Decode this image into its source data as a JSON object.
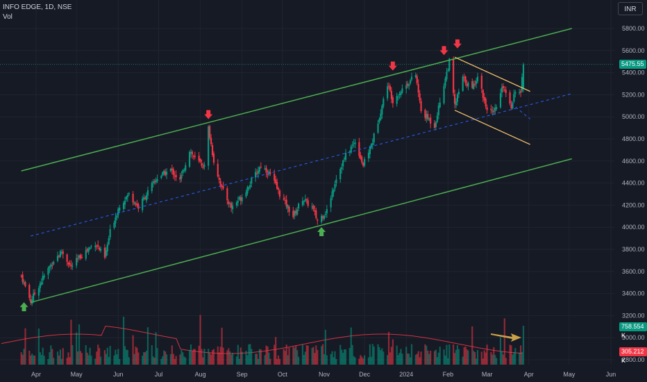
{
  "header": {
    "symbol": "INFO EDGE, 1D, NSE",
    "vol_label": "Vol"
  },
  "currency_button": "INR",
  "price_tag": {
    "value": "5475.55",
    "color": "#089981"
  },
  "vol_tags": [
    {
      "value": "758.554 K",
      "color": "#089981"
    },
    {
      "value": "305.212 K",
      "color": "#f23645"
    }
  ],
  "colors": {
    "up": "#089981",
    "down": "#f23645",
    "channel": "#4caf50",
    "wedge": "#f7c56b",
    "midline": "#2962ff",
    "volume_ma": "#f23645",
    "annotation_arrow": "#c9a14a"
  },
  "chart_data": {
    "type": "candlestick",
    "title": "INFO EDGE, 1D, NSE",
    "x_ticks": [
      "Apr",
      "May",
      "Jun",
      "Jul",
      "Aug",
      "Sep",
      "Oct",
      "Nov",
      "Dec",
      "2024",
      "Feb",
      "Mar",
      "Apr",
      "May",
      "Jun"
    ],
    "y_ticks": [
      5800,
      5600,
      5400,
      5200,
      5000,
      4800,
      4600,
      4400,
      4200,
      4000,
      3800,
      3600,
      3400,
      3200,
      3000,
      2800
    ],
    "ylim": [
      2720,
      5950
    ],
    "last_price": 5475.55,
    "close_path": [
      [
        "2023-03-21",
        3560
      ],
      [
        "2023-03-28",
        3330
      ],
      [
        "2023-04-06",
        3540
      ],
      [
        "2023-04-14",
        3700
      ],
      [
        "2023-04-20",
        3780
      ],
      [
        "2023-04-27",
        3640
      ],
      [
        "2023-05-05",
        3750
      ],
      [
        "2023-05-15",
        3860
      ],
      [
        "2023-05-22",
        3720
      ],
      [
        "2023-05-26",
        3960
      ],
      [
        "2023-06-02",
        4200
      ],
      [
        "2023-06-09",
        4300
      ],
      [
        "2023-06-16",
        4180
      ],
      [
        "2023-06-23",
        4320
      ],
      [
        "2023-06-30",
        4450
      ],
      [
        "2023-07-10",
        4520
      ],
      [
        "2023-07-17",
        4420
      ],
      [
        "2023-07-24",
        4700
      ],
      [
        "2023-07-28",
        4620
      ],
      [
        "2023-08-04",
        4550
      ],
      [
        "2023-08-07",
        4900
      ],
      [
        "2023-08-11",
        4600
      ],
      [
        "2023-08-17",
        4350
      ],
      [
        "2023-08-24",
        4180
      ],
      [
        "2023-09-01",
        4280
      ],
      [
        "2023-09-08",
        4420
      ],
      [
        "2023-09-15",
        4560
      ],
      [
        "2023-09-22",
        4480
      ],
      [
        "2023-09-29",
        4300
      ],
      [
        "2023-10-09",
        4100
      ],
      [
        "2023-10-16",
        4260
      ],
      [
        "2023-10-23",
        4180
      ],
      [
        "2023-10-27",
        4060
      ],
      [
        "2023-11-03",
        4150
      ],
      [
        "2023-11-10",
        4450
      ],
      [
        "2023-11-17",
        4650
      ],
      [
        "2023-11-24",
        4780
      ],
      [
        "2023-11-30",
        4560
      ],
      [
        "2023-12-07",
        4780
      ],
      [
        "2023-12-14",
        5100
      ],
      [
        "2023-12-18",
        5300
      ],
      [
        "2023-12-22",
        5150
      ],
      [
        "2023-12-29",
        5250
      ],
      [
        "2024-01-08",
        5380
      ],
      [
        "2024-01-12",
        5050
      ],
      [
        "2024-01-22",
        4920
      ],
      [
        "2024-01-29",
        5300
      ],
      [
        "2024-02-02",
        5500
      ],
      [
        "2024-02-06",
        5100
      ],
      [
        "2024-02-12",
        5350
      ],
      [
        "2024-02-19",
        5250
      ],
      [
        "2024-02-23",
        5380
      ],
      [
        "2024-02-29",
        5100
      ],
      [
        "2024-03-06",
        5020
      ],
      [
        "2024-03-13",
        5280
      ],
      [
        "2024-03-19",
        5100
      ],
      [
        "2024-03-22",
        5250
      ],
      [
        "2024-03-26",
        5200
      ],
      [
        "2024-03-28",
        5475.55
      ]
    ],
    "overlays": {
      "channel_upper": [
        [
          "2023-03-21",
          4510
        ],
        [
          "2024-05-03",
          5800
        ]
      ],
      "channel_lower": [
        [
          "2023-03-28",
          3320
        ],
        [
          "2024-05-03",
          4620
        ]
      ],
      "channel_mid": [
        [
          "2023-03-28",
          3920
        ],
        [
          "2024-05-03",
          5210
        ]
      ],
      "wedge_upper": [
        [
          "2024-02-06",
          5540
        ],
        [
          "2024-04-02",
          5230
        ]
      ],
      "wedge_lower": [
        [
          "2024-02-06",
          5060
        ],
        [
          "2024-04-02",
          4750
        ]
      ],
      "wedge_mid": [
        [
          "2024-03-19",
          5120
        ],
        [
          "2024-04-02",
          4980
        ]
      ]
    },
    "markers": [
      {
        "kind": "down",
        "date": "2023-08-07",
        "price": 4960
      },
      {
        "kind": "down",
        "date": "2023-12-22",
        "price": 5400
      },
      {
        "kind": "down",
        "date": "2024-01-29",
        "price": 5540
      },
      {
        "kind": "down",
        "date": "2024-02-08",
        "price": 5600
      },
      {
        "kind": "up",
        "date": "2023-03-23",
        "price": 3340
      },
      {
        "kind": "up",
        "date": "2023-10-30",
        "price": 4020
      }
    ],
    "volume": {
      "last": "758.554 K",
      "ma": "305.212 K"
    }
  }
}
